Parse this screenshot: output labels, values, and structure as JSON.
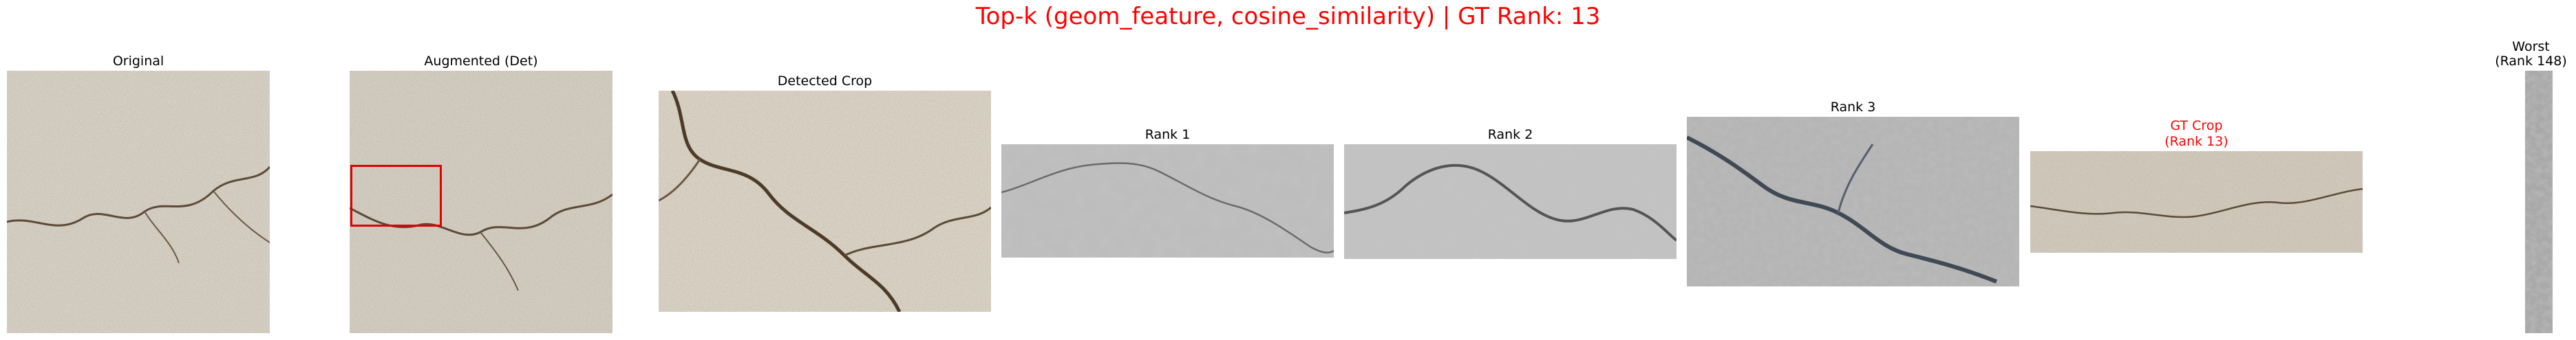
{
  "figure": {
    "title": "Top-k (geom_feature, cosine_similarity) | GT Rank: 13"
  },
  "panels": {
    "original": {
      "label": "Original"
    },
    "augmented": {
      "label": "Augmented (Det)"
    },
    "detected_crop": {
      "label": "Detected Crop"
    },
    "rank1": {
      "label": "Rank 1"
    },
    "rank2": {
      "label": "Rank 2"
    },
    "rank3": {
      "label": "Rank 3"
    },
    "gt_crop": {
      "label_line1": "GT Crop",
      "label_line2": "(Rank 13)"
    },
    "worst": {
      "label_line1": "Worst",
      "label_line2": "(Rank 148)"
    }
  },
  "colors": {
    "title": "#ff0000",
    "gt_caption": "#ff0000",
    "detection_box": "#e00000",
    "concrete_light": "#d8d2c6",
    "concrete_gray": "#b9b9b9"
  }
}
